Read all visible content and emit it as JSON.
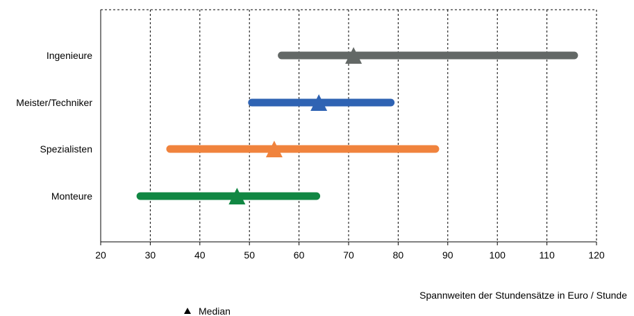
{
  "chart_data": {
    "type": "range-bar",
    "title": "",
    "xlabel": "Spannweiten der Stundensätze in Euro / Stunde",
    "ylabel": "",
    "xlim": [
      20,
      120
    ],
    "xticks": [
      20,
      30,
      40,
      50,
      60,
      70,
      80,
      90,
      100,
      110,
      120
    ],
    "grid": "dashed vertical",
    "legend": {
      "label": "Median",
      "marker": "triangle",
      "placement": "bottom-left"
    },
    "series": [
      {
        "category": "Ingenieure",
        "min": 56.5,
        "max": 115.5,
        "median": 71,
        "color": "#636866"
      },
      {
        "category": "Meister/Techniker",
        "min": 50.5,
        "max": 78.5,
        "median": 64,
        "color": "#2f63b3"
      },
      {
        "category": "Spezialisten",
        "min": 34,
        "max": 87.5,
        "median": 55,
        "color": "#f0833d"
      },
      {
        "category": "Monteure",
        "min": 28,
        "max": 63.5,
        "median": 47.5,
        "color": "#118743"
      }
    ]
  }
}
